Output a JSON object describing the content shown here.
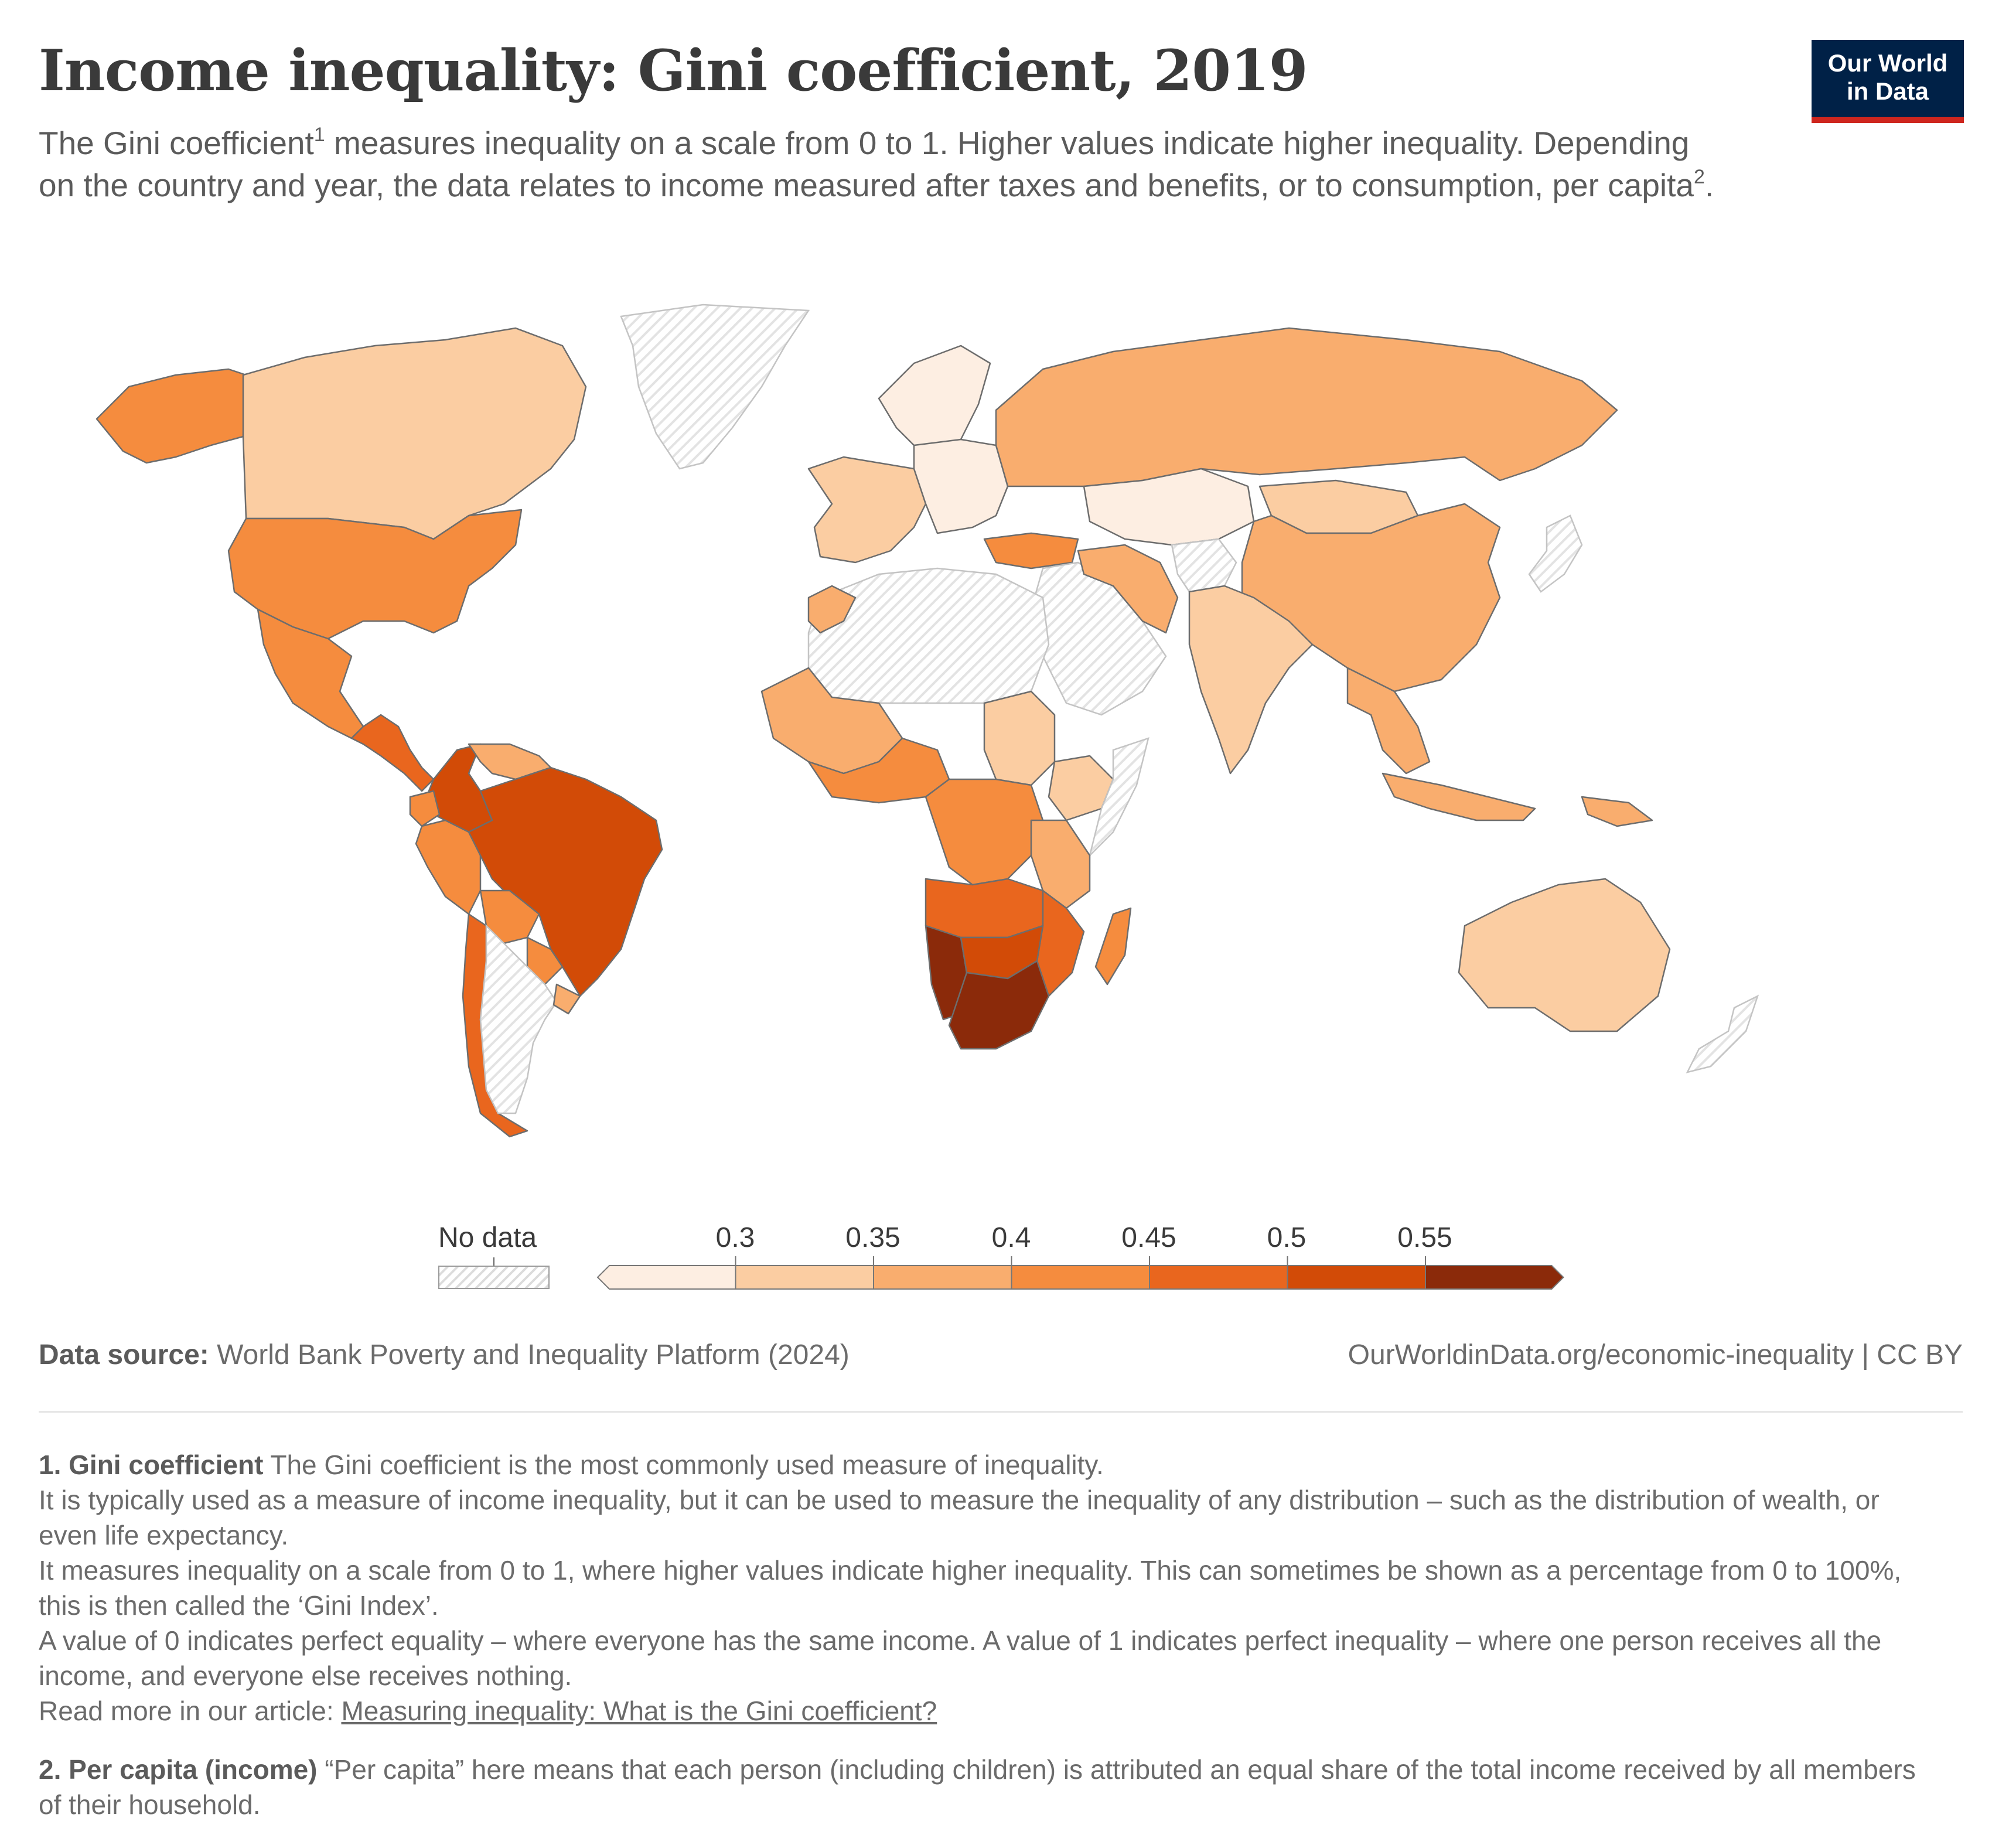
{
  "header": {
    "title": "Income inequality: Gini coefficient, 2019",
    "subtitle_part1": "The Gini coefficient",
    "subtitle_ref1": "1",
    "subtitle_part2": " measures inequality on a scale from 0 to 1. Higher values indicate higher inequality. Depending on the country and year, the data relates to income measured after taxes and benefits, or to consumption, per capita",
    "subtitle_ref2": "2",
    "subtitle_part3": ".",
    "logo_line1": "Our World",
    "logo_line2": "in Data"
  },
  "legend": {
    "no_data_label": "No data",
    "ticks": [
      "0.3",
      "0.35",
      "0.4",
      "0.45",
      "0.5",
      "0.55"
    ],
    "colors": [
      "#fdeee2",
      "#fbcda2",
      "#f9ad6e",
      "#f58c3e",
      "#e9661e",
      "#d24b07",
      "#8b2a0a"
    ],
    "no_data_color": "#e8e8e8"
  },
  "regions": [
    {
      "name": "Canada",
      "bin": 1
    },
    {
      "name": "United States",
      "bin": 3
    },
    {
      "name": "Alaska",
      "bin": 3
    },
    {
      "name": "Mexico",
      "bin": 3
    },
    {
      "name": "Central America",
      "bin": 4
    },
    {
      "name": "Colombia",
      "bin": 5
    },
    {
      "name": "Venezuela",
      "bin": 2
    },
    {
      "name": "Ecuador",
      "bin": 3
    },
    {
      "name": "Peru",
      "bin": 3
    },
    {
      "name": "Brazil",
      "bin": 5
    },
    {
      "name": "Bolivia",
      "bin": 3
    },
    {
      "name": "Paraguay",
      "bin": 3
    },
    {
      "name": "Chile",
      "bin": 4
    },
    {
      "name": "Uruguay",
      "bin": 2
    },
    {
      "name": "Greenland",
      "bin": null
    },
    {
      "name": "Argentina",
      "bin": null
    },
    {
      "name": "Western Europe",
      "bin": 1
    },
    {
      "name": "Northern Europe",
      "bin": 0
    },
    {
      "name": "Eastern Europe",
      "bin": 0
    },
    {
      "name": "Turkey",
      "bin": 3
    },
    {
      "name": "Russia",
      "bin": 2
    },
    {
      "name": "Kazakhstan",
      "bin": 0
    },
    {
      "name": "Mongolia",
      "bin": 1
    },
    {
      "name": "China",
      "bin": 2
    },
    {
      "name": "Iran",
      "bin": 2
    },
    {
      "name": "Middle East",
      "bin": null
    },
    {
      "name": "Afghanistan",
      "bin": null
    },
    {
      "name": "India",
      "bin": 1
    },
    {
      "name": "Southeast Asia",
      "bin": 2
    },
    {
      "name": "Indonesia",
      "bin": 2
    },
    {
      "name": "North Africa",
      "bin": null
    },
    {
      "name": "Morocco",
      "bin": 2
    },
    {
      "name": "West Africa",
      "bin": 2
    },
    {
      "name": "Gulf of Guinea",
      "bin": 3
    },
    {
      "name": "Sudan",
      "bin": 1
    },
    {
      "name": "Central Africa",
      "bin": 3
    },
    {
      "name": "Ethiopia",
      "bin": 1
    },
    {
      "name": "Somalia",
      "bin": null
    },
    {
      "name": "East Africa",
      "bin": 2
    },
    {
      "name": "Angola and Zambia",
      "bin": 4
    },
    {
      "name": "Mozambique",
      "bin": 4
    },
    {
      "name": "Namibia",
      "bin": 6
    },
    {
      "name": "Botswana",
      "bin": 5
    },
    {
      "name": "South Africa",
      "bin": 6
    },
    {
      "name": "Madagascar",
      "bin": 3
    },
    {
      "name": "Australia",
      "bin": 1
    },
    {
      "name": "New Zealand",
      "bin": null
    },
    {
      "name": "Papua New Guinea",
      "bin": 2
    },
    {
      "name": "Japan",
      "bin": null
    }
  ],
  "footer": {
    "source_label": "Data source:",
    "source_text": " World Bank Poverty and Inequality Platform (2024)",
    "url_text": "OurWorldinData.org/economic-inequality | CC BY"
  },
  "notes": {
    "n1_title": "1. Gini coefficient",
    "n1_l1": " The Gini coefficient is the most commonly used measure of inequality.",
    "n1_l2": "It is typically used as a measure of income inequality, but it can be used to measure the inequality of any distribution – such as the distribution of wealth, or even life expectancy.",
    "n1_l3": "It measures inequality on a scale from 0 to 1, where higher values indicate higher inequality. This can sometimes be shown as a percentage from 0 to 100%, this is then called the ‘Gini Index’.",
    "n1_l4": "A value of 0 indicates perfect equality – where everyone has the same income. A value of 1 indicates perfect inequality – where one person receives all the income, and everyone else receives nothing.",
    "n1_l5_prefix": "Read more in our article: ",
    "n1_l5_link": "Measuring inequality: What is the Gini coefficient?",
    "n2_title": "2. Per capita (income)",
    "n2_text": " “Per capita” here means that each person (including children) is attributed an equal share of the total income received by all members of their household."
  }
}
